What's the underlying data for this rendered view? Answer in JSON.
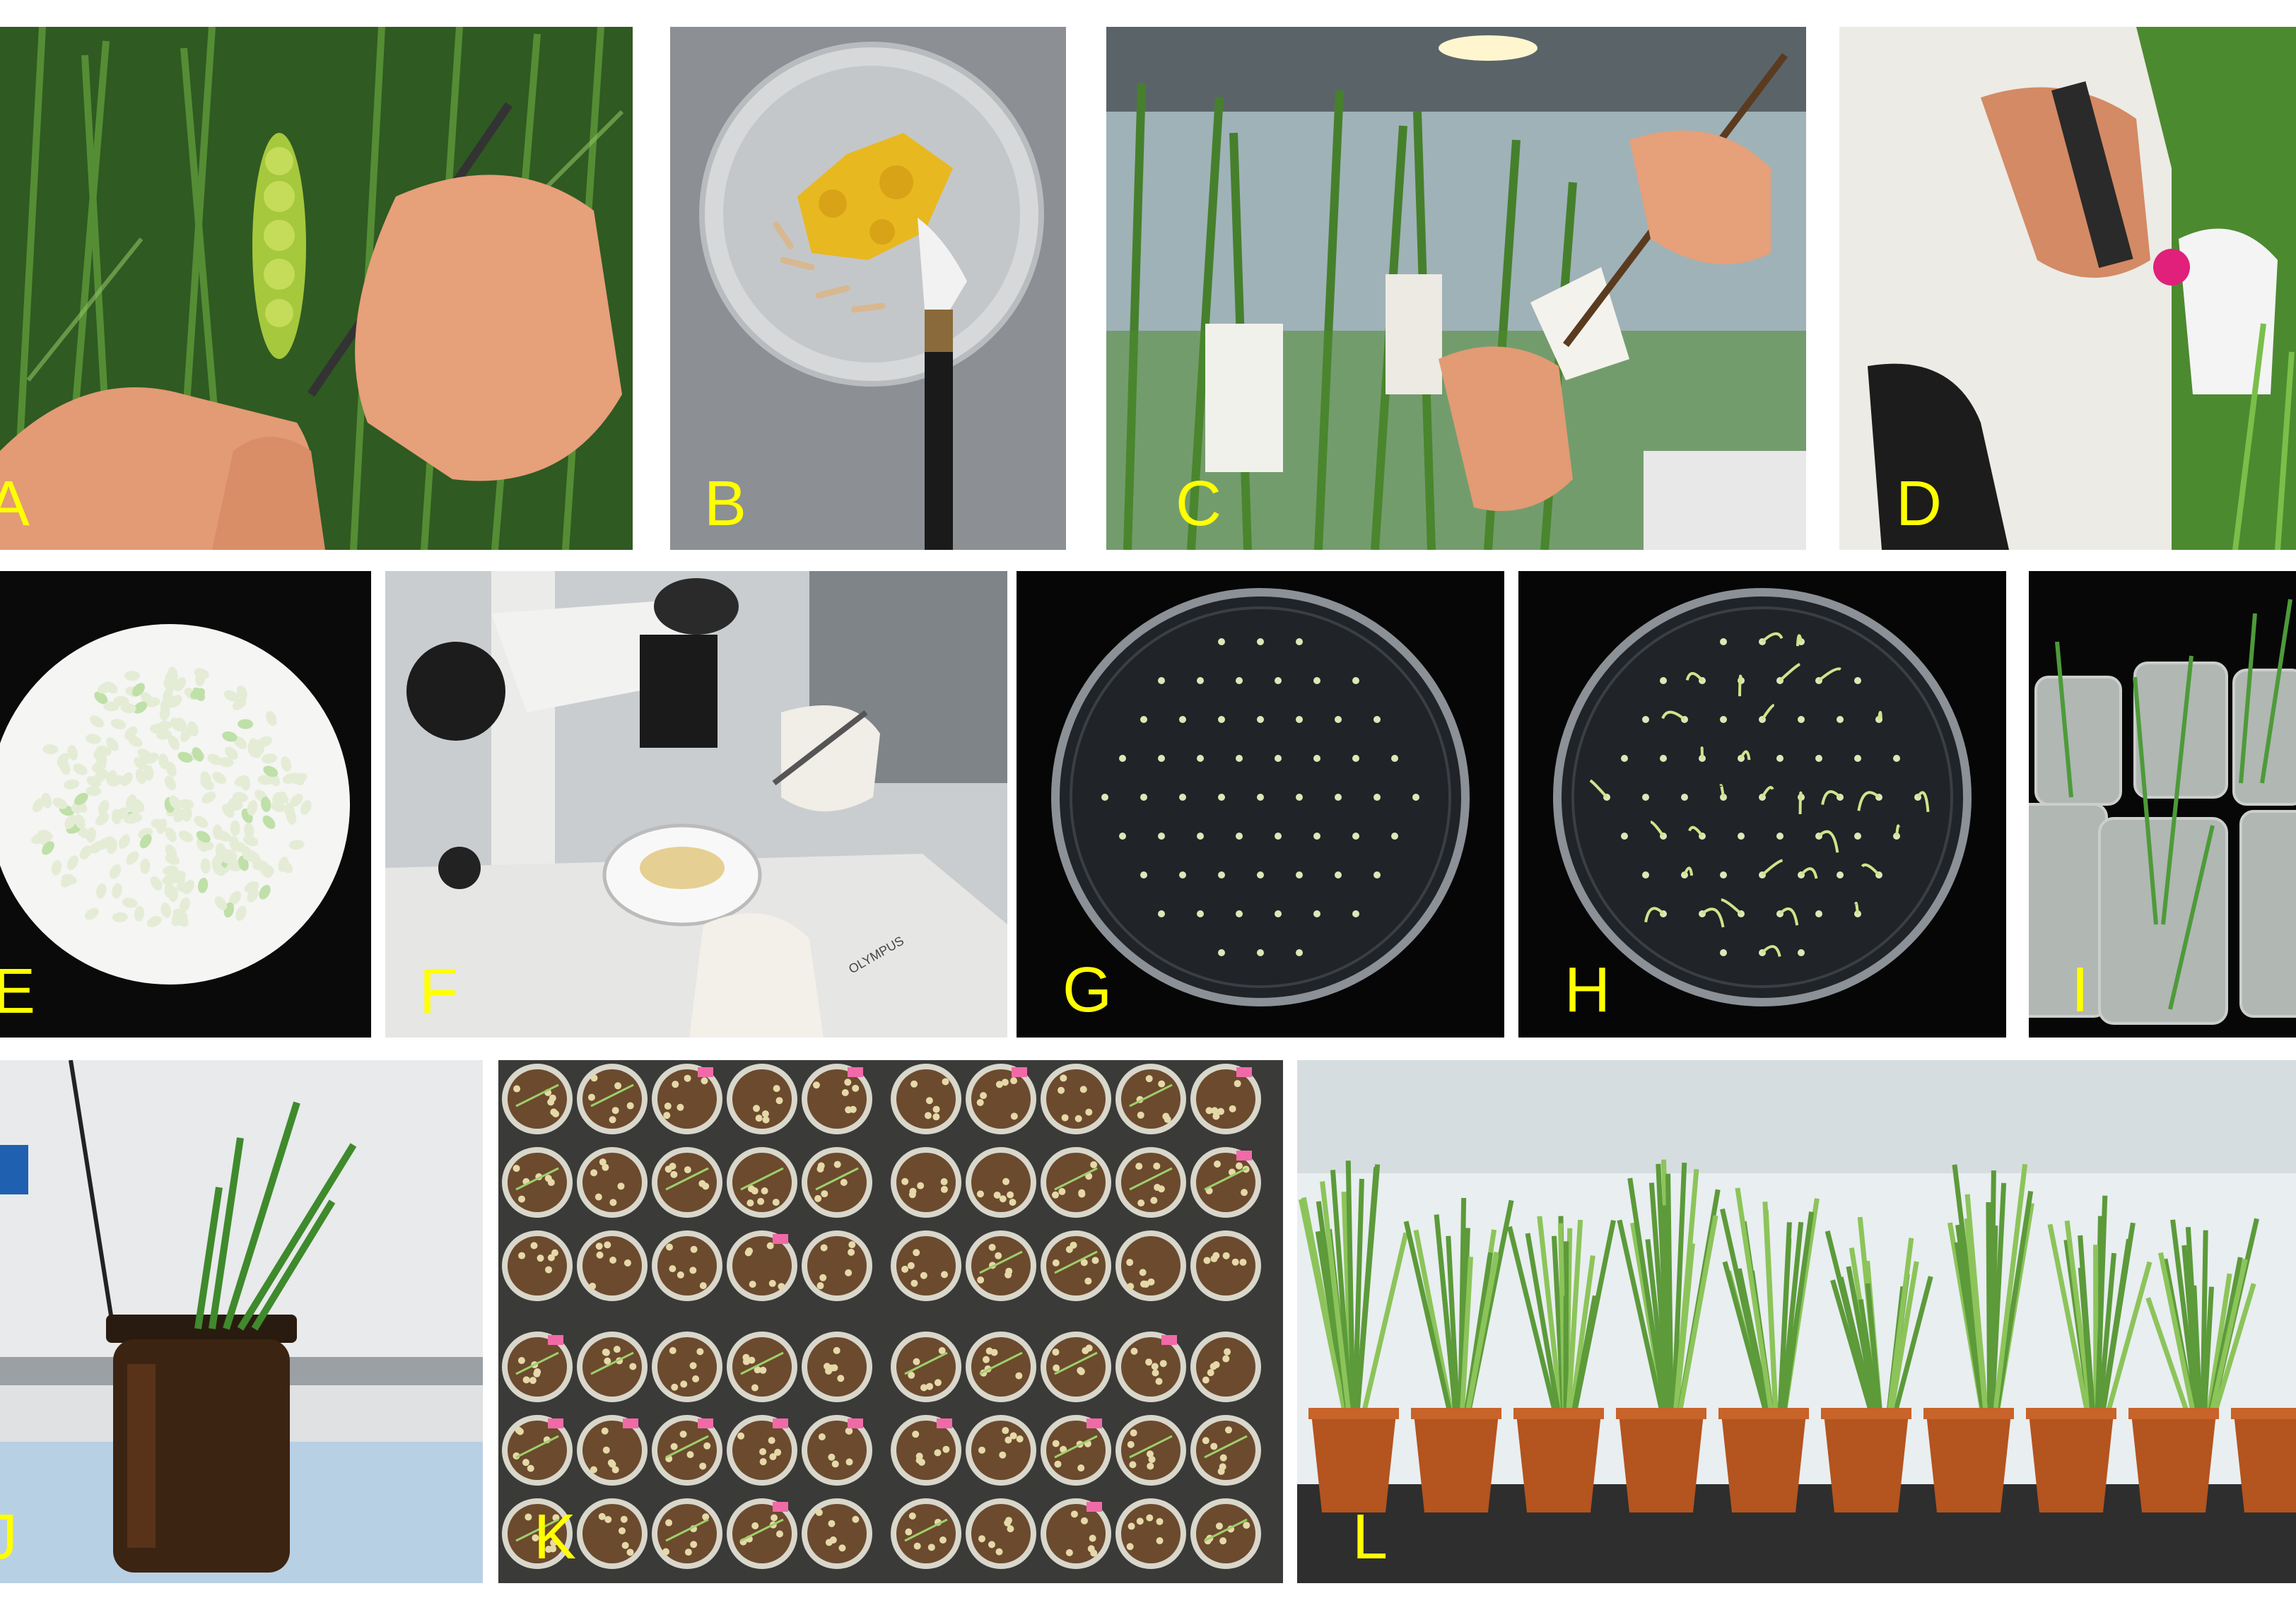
{
  "figure": {
    "panels": [
      {
        "letter": "A"
      },
      {
        "letter": "B"
      },
      {
        "letter": "C"
      },
      {
        "letter": "D"
      },
      {
        "letter": "E"
      },
      {
        "letter": "F"
      },
      {
        "letter": "G"
      },
      {
        "letter": "H"
      },
      {
        "letter": "I"
      },
      {
        "letter": "J"
      },
      {
        "letter": "K"
      },
      {
        "letter": "L"
      }
    ],
    "instrument_brand": "OLYMPUS",
    "colors": {
      "label": "#ffff00",
      "foliage": "#3f7a2a",
      "pollen": "#e8b820",
      "dark_bg": "#0a0a0a",
      "soil": "#6b4a2e",
      "pot": "#b4541f"
    }
  }
}
